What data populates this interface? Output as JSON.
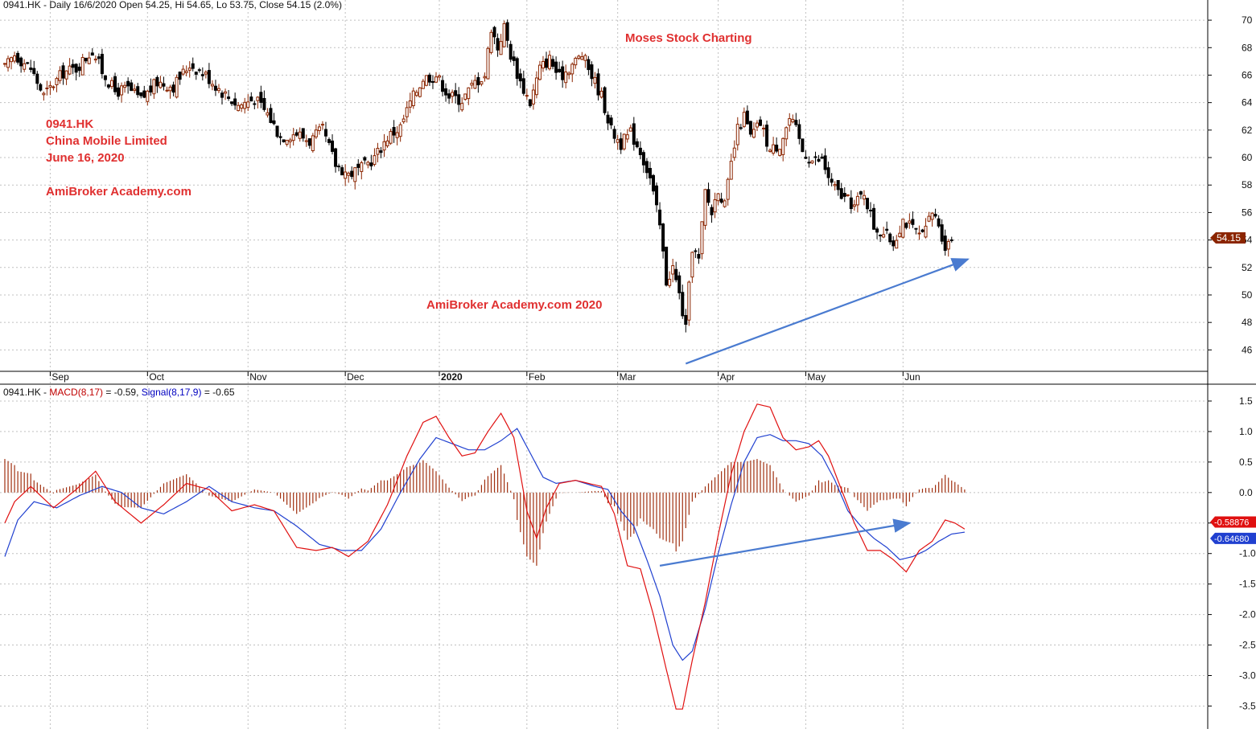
{
  "header": {
    "price_info": "0941.HK - Daily 16/6/2020 Open 54.25, Hi 54.65, Lo 53.75, Close 54.15 (2.0%)",
    "macd_prefix": "0941.HK - ",
    "macd_label": "MACD(8,17)",
    "macd_value_text": " = -0.59, ",
    "signal_label": "Signal(8,17,9)",
    "signal_value_text": " = -0.65"
  },
  "annotations": {
    "brand": "Moses Stock Charting",
    "symbol": "0941.HK",
    "company": "China Mobile Limited",
    "date": "June 16, 2020",
    "site": "AmiBroker Academy.com",
    "site_year": "AmiBroker Academy.com  2020"
  },
  "colors": {
    "bull": "#8b2500",
    "bear": "#000000",
    "macd_line": "#e01010",
    "signal_line": "#2040d0",
    "histogram": "#a03010",
    "arrow": "#4a7bd0",
    "grid": "#c0c0c0"
  },
  "chart_data": [
    {
      "type": "candlestick",
      "name": "price",
      "ylim": [
        44.5,
        71
      ],
      "yticks": [
        46,
        48,
        50,
        52,
        54,
        56,
        58,
        60,
        62,
        64,
        66,
        68,
        70
      ],
      "months": [
        {
          "label": "Sep",
          "index": 14
        },
        {
          "label": "Oct",
          "index": 44
        },
        {
          "label": "Nov",
          "index": 75
        },
        {
          "label": "Dec",
          "index": 105
        },
        {
          "label": "2020",
          "index": 134
        },
        {
          "label": "Feb",
          "index": 161
        },
        {
          "label": "Mar",
          "index": 189
        },
        {
          "label": "Apr",
          "index": 220
        },
        {
          "label": "May",
          "index": 247
        },
        {
          "label": "Jun",
          "index": 277
        }
      ],
      "last_price_tag": "54.15",
      "keypoints": [
        {
          "i": 0,
          "c": 66.5
        },
        {
          "i": 3,
          "c": 67.5
        },
        {
          "i": 8,
          "c": 66.5
        },
        {
          "i": 12,
          "c": 64.5
        },
        {
          "i": 18,
          "c": 66.2
        },
        {
          "i": 22,
          "c": 66.5
        },
        {
          "i": 27,
          "c": 67.8
        },
        {
          "i": 30,
          "c": 66.3
        },
        {
          "i": 34,
          "c": 64.8
        },
        {
          "i": 38,
          "c": 65.0
        },
        {
          "i": 42,
          "c": 64.2
        },
        {
          "i": 47,
          "c": 65.5
        },
        {
          "i": 52,
          "c": 65.2
        },
        {
          "i": 57,
          "c": 66.8
        },
        {
          "i": 62,
          "c": 66.0
        },
        {
          "i": 67,
          "c": 64.8
        },
        {
          "i": 72,
          "c": 63.8
        },
        {
          "i": 77,
          "c": 64.3
        },
        {
          "i": 81,
          "c": 63.2
        },
        {
          "i": 85,
          "c": 61.5
        },
        {
          "i": 90,
          "c": 61.8
        },
        {
          "i": 94,
          "c": 61.2
        },
        {
          "i": 98,
          "c": 62.0
        },
        {
          "i": 102,
          "c": 59.5
        },
        {
          "i": 106,
          "c": 58.8
        },
        {
          "i": 110,
          "c": 59.2
        },
        {
          "i": 114,
          "c": 60.0
        },
        {
          "i": 118,
          "c": 61.5
        },
        {
          "i": 122,
          "c": 62.2
        },
        {
          "i": 125,
          "c": 64.0
        },
        {
          "i": 129,
          "c": 65.8
        },
        {
          "i": 133,
          "c": 66.0
        },
        {
          "i": 137,
          "c": 64.5
        },
        {
          "i": 141,
          "c": 64.2
        },
        {
          "i": 145,
          "c": 65.5
        },
        {
          "i": 148,
          "c": 66.0
        },
        {
          "i": 150,
          "c": 69.5
        },
        {
          "i": 152,
          "c": 68.0
        },
        {
          "i": 154,
          "c": 69.5
        },
        {
          "i": 156,
          "c": 67.5
        },
        {
          "i": 159,
          "c": 65.5
        },
        {
          "i": 162,
          "c": 64.0
        },
        {
          "i": 165,
          "c": 66.5
        },
        {
          "i": 168,
          "c": 67.2
        },
        {
          "i": 171,
          "c": 65.8
        },
        {
          "i": 175,
          "c": 66.8
        },
        {
          "i": 178,
          "c": 67.5
        },
        {
          "i": 181,
          "c": 66.0
        },
        {
          "i": 184,
          "c": 64.5
        },
        {
          "i": 187,
          "c": 62.0
        },
        {
          "i": 190,
          "c": 61.0
        },
        {
          "i": 193,
          "c": 61.8
        },
        {
          "i": 196,
          "c": 60.5
        },
        {
          "i": 199,
          "c": 58.5
        },
        {
          "i": 202,
          "c": 55.0
        },
        {
          "i": 204,
          "c": 51.0
        },
        {
          "i": 206,
          "c": 52.0
        },
        {
          "i": 208,
          "c": 50.0
        },
        {
          "i": 210,
          "c": 47.5
        },
        {
          "i": 212,
          "c": 53.5
        },
        {
          "i": 214,
          "c": 52.5
        },
        {
          "i": 216,
          "c": 57.5
        },
        {
          "i": 218,
          "c": 56.0
        },
        {
          "i": 220,
          "c": 57.8
        },
        {
          "i": 222,
          "c": 56.5
        },
        {
          "i": 224,
          "c": 59.5
        },
        {
          "i": 226,
          "c": 62.0
        },
        {
          "i": 228,
          "c": 63.0
        },
        {
          "i": 230,
          "c": 61.5
        },
        {
          "i": 233,
          "c": 62.5
        },
        {
          "i": 236,
          "c": 60.5
        },
        {
          "i": 239,
          "c": 61.0
        },
        {
          "i": 242,
          "c": 62.8
        },
        {
          "i": 244,
          "c": 62.0
        },
        {
          "i": 246,
          "c": 60.5
        },
        {
          "i": 249,
          "c": 59.8
        },
        {
          "i": 252,
          "c": 59.8
        },
        {
          "i": 255,
          "c": 58.0
        },
        {
          "i": 258,
          "c": 57.2
        },
        {
          "i": 262,
          "c": 56.5
        },
        {
          "i": 265,
          "c": 57.5
        },
        {
          "i": 268,
          "c": 55.0
        },
        {
          "i": 271,
          "c": 54.5
        },
        {
          "i": 274,
          "c": 53.8
        },
        {
          "i": 277,
          "c": 55.5
        },
        {
          "i": 280,
          "c": 54.8
        },
        {
          "i": 283,
          "c": 54.2
        },
        {
          "i": 286,
          "c": 56.0
        },
        {
          "i": 288,
          "c": 55.2
        },
        {
          "i": 290,
          "c": 53.5
        },
        {
          "i": 292,
          "c": 54.15
        }
      ],
      "trendline": {
        "from": {
          "i": 210,
          "y": 45.0
        },
        "to": {
          "i": 297,
          "y": 52.6
        }
      }
    },
    {
      "type": "line",
      "name": "macd",
      "ylim": [
        -3.85,
        1.75
      ],
      "yticks": [
        -3.5,
        -3.0,
        -2.5,
        -2.0,
        -1.5,
        -1.0,
        -0.5,
        0.0,
        0.5,
        1.0,
        1.5
      ],
      "series": [
        {
          "name": "MACD(8,17)",
          "last_tag": "-0.58876",
          "points": [
            {
              "i": 0,
              "v": -0.5
            },
            {
              "i": 3,
              "v": -0.15
            },
            {
              "i": 8,
              "v": 0.1
            },
            {
              "i": 15,
              "v": -0.25
            },
            {
              "i": 22,
              "v": 0.05
            },
            {
              "i": 28,
              "v": 0.35
            },
            {
              "i": 34,
              "v": -0.15
            },
            {
              "i": 42,
              "v": -0.5
            },
            {
              "i": 49,
              "v": -0.2
            },
            {
              "i": 56,
              "v": 0.15
            },
            {
              "i": 63,
              "v": 0.05
            },
            {
              "i": 70,
              "v": -0.3
            },
            {
              "i": 77,
              "v": -0.2
            },
            {
              "i": 83,
              "v": -0.3
            },
            {
              "i": 90,
              "v": -0.9
            },
            {
              "i": 96,
              "v": -0.95
            },
            {
              "i": 101,
              "v": -0.9
            },
            {
              "i": 106,
              "v": -1.05
            },
            {
              "i": 112,
              "v": -0.8
            },
            {
              "i": 118,
              "v": -0.2
            },
            {
              "i": 124,
              "v": 0.6
            },
            {
              "i": 129,
              "v": 1.15
            },
            {
              "i": 133,
              "v": 1.25
            },
            {
              "i": 137,
              "v": 0.9
            },
            {
              "i": 141,
              "v": 0.6
            },
            {
              "i": 145,
              "v": 0.65
            },
            {
              "i": 149,
              "v": 1.0
            },
            {
              "i": 153,
              "v": 1.3
            },
            {
              "i": 157,
              "v": 0.9
            },
            {
              "i": 161,
              "v": -0.3
            },
            {
              "i": 164,
              "v": -0.75
            },
            {
              "i": 167,
              "v": -0.25
            },
            {
              "i": 171,
              "v": 0.15
            },
            {
              "i": 176,
              "v": 0.2
            },
            {
              "i": 180,
              "v": 0.15
            },
            {
              "i": 184,
              "v": 0.1
            },
            {
              "i": 188,
              "v": -0.35
            },
            {
              "i": 192,
              "v": -1.2
            },
            {
              "i": 196,
              "v": -1.25
            },
            {
              "i": 200,
              "v": -2.0
            },
            {
              "i": 204,
              "v": -2.9
            },
            {
              "i": 207,
              "v": -3.55
            },
            {
              "i": 209,
              "v": -3.55
            },
            {
              "i": 212,
              "v": -2.75
            },
            {
              "i": 216,
              "v": -1.8
            },
            {
              "i": 220,
              "v": -0.7
            },
            {
              "i": 224,
              "v": 0.3
            },
            {
              "i": 228,
              "v": 1.0
            },
            {
              "i": 232,
              "v": 1.45
            },
            {
              "i": 236,
              "v": 1.4
            },
            {
              "i": 240,
              "v": 0.9
            },
            {
              "i": 244,
              "v": 0.7
            },
            {
              "i": 248,
              "v": 0.75
            },
            {
              "i": 251,
              "v": 0.85
            },
            {
              "i": 254,
              "v": 0.6
            },
            {
              "i": 258,
              "v": 0.05
            },
            {
              "i": 262,
              "v": -0.5
            },
            {
              "i": 266,
              "v": -0.95
            },
            {
              "i": 270,
              "v": -0.95
            },
            {
              "i": 274,
              "v": -1.1
            },
            {
              "i": 278,
              "v": -1.3
            },
            {
              "i": 282,
              "v": -0.95
            },
            {
              "i": 286,
              "v": -0.8
            },
            {
              "i": 290,
              "v": -0.45
            },
            {
              "i": 293,
              "v": -0.5
            },
            {
              "i": 296,
              "v": -0.6
            }
          ]
        },
        {
          "name": "Signal(8,17,9)",
          "last_tag": "-0.64680",
          "points": [
            {
              "i": 0,
              "v": -1.05
            },
            {
              "i": 4,
              "v": -0.45
            },
            {
              "i": 9,
              "v": -0.15
            },
            {
              "i": 16,
              "v": -0.25
            },
            {
              "i": 23,
              "v": -0.05
            },
            {
              "i": 30,
              "v": 0.1
            },
            {
              "i": 36,
              "v": 0.0
            },
            {
              "i": 42,
              "v": -0.25
            },
            {
              "i": 49,
              "v": -0.35
            },
            {
              "i": 56,
              "v": -0.15
            },
            {
              "i": 63,
              "v": 0.1
            },
            {
              "i": 70,
              "v": -0.15
            },
            {
              "i": 77,
              "v": -0.25
            },
            {
              "i": 83,
              "v": -0.3
            },
            {
              "i": 90,
              "v": -0.55
            },
            {
              "i": 97,
              "v": -0.85
            },
            {
              "i": 104,
              "v": -0.95
            },
            {
              "i": 110,
              "v": -0.95
            },
            {
              "i": 116,
              "v": -0.6
            },
            {
              "i": 122,
              "v": 0.0
            },
            {
              "i": 128,
              "v": 0.55
            },
            {
              "i": 133,
              "v": 0.9
            },
            {
              "i": 138,
              "v": 0.8
            },
            {
              "i": 143,
              "v": 0.7
            },
            {
              "i": 148,
              "v": 0.7
            },
            {
              "i": 153,
              "v": 0.85
            },
            {
              "i": 158,
              "v": 1.05
            },
            {
              "i": 162,
              "v": 0.65
            },
            {
              "i": 166,
              "v": 0.25
            },
            {
              "i": 170,
              "v": 0.15
            },
            {
              "i": 176,
              "v": 0.2
            },
            {
              "i": 182,
              "v": 0.1
            },
            {
              "i": 186,
              "v": 0.05
            },
            {
              "i": 190,
              "v": -0.3
            },
            {
              "i": 194,
              "v": -0.55
            },
            {
              "i": 198,
              "v": -1.1
            },
            {
              "i": 202,
              "v": -1.7
            },
            {
              "i": 206,
              "v": -2.5
            },
            {
              "i": 209,
              "v": -2.75
            },
            {
              "i": 212,
              "v": -2.6
            },
            {
              "i": 216,
              "v": -1.9
            },
            {
              "i": 220,
              "v": -1.0
            },
            {
              "i": 224,
              "v": -0.2
            },
            {
              "i": 228,
              "v": 0.5
            },
            {
              "i": 232,
              "v": 0.9
            },
            {
              "i": 236,
              "v": 0.95
            },
            {
              "i": 240,
              "v": 0.85
            },
            {
              "i": 244,
              "v": 0.85
            },
            {
              "i": 248,
              "v": 0.8
            },
            {
              "i": 252,
              "v": 0.6
            },
            {
              "i": 256,
              "v": 0.2
            },
            {
              "i": 260,
              "v": -0.3
            },
            {
              "i": 264,
              "v": -0.55
            },
            {
              "i": 268,
              "v": -0.75
            },
            {
              "i": 272,
              "v": -0.9
            },
            {
              "i": 276,
              "v": -1.1
            },
            {
              "i": 280,
              "v": -1.05
            },
            {
              "i": 284,
              "v": -0.95
            },
            {
              "i": 288,
              "v": -0.8
            },
            {
              "i": 292,
              "v": -0.68
            },
            {
              "i": 296,
              "v": -0.65
            }
          ]
        }
      ],
      "trendline": {
        "from": {
          "i": 202,
          "v": -1.2
        },
        "to": {
          "i": 279,
          "v": -0.5
        }
      }
    }
  ]
}
